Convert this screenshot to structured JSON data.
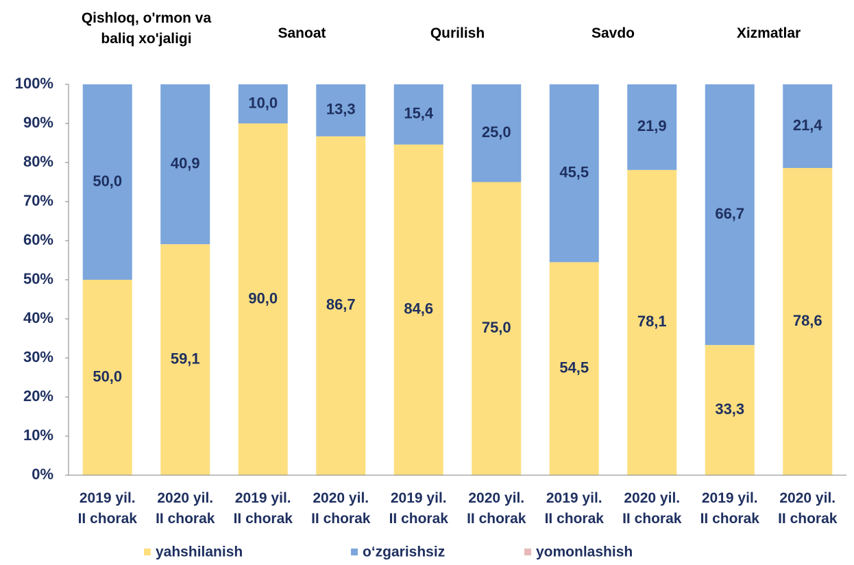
{
  "chart_data": {
    "type": "stacked_bar",
    "groups": [
      {
        "title": [
          "Qishloq, o'rmon va",
          "baliq xo'jaligi"
        ]
      },
      {
        "title": [
          "Sanoat"
        ]
      },
      {
        "title": [
          "Qurilish"
        ]
      },
      {
        "title": [
          "Savdo"
        ]
      },
      {
        "title": [
          "Xizmatlar"
        ]
      }
    ],
    "categories": [
      [
        "2019 yil.",
        "II chorak"
      ],
      [
        "2020 yil.",
        "II chorak"
      ],
      [
        "2019 yil.",
        "II chorak"
      ],
      [
        "2020 yil.",
        "II chorak"
      ],
      [
        "2019 yil.",
        "II chorak"
      ],
      [
        "2020 yil.",
        "II chorak"
      ],
      [
        "2019 yil.",
        "II chorak"
      ],
      [
        "2020 yil.",
        "II chorak"
      ],
      [
        "2019 yil.",
        "II chorak"
      ],
      [
        "2020 yil.",
        "II chorak"
      ]
    ],
    "series": [
      {
        "name": "yahshilanish",
        "color": "#fddf7f",
        "values": [
          50.0,
          59.1,
          90.0,
          86.7,
          84.6,
          75.0,
          54.5,
          78.1,
          33.3,
          78.6
        ],
        "value_labels": [
          "50,0",
          "59,1",
          "90,0",
          "86,7",
          "84,6",
          "75,0",
          "54,5",
          "78,1",
          "33,3",
          "78,6"
        ]
      },
      {
        "name": "o‘zgarishsiz",
        "color": "#7ca6dc",
        "values": [
          50.0,
          40.9,
          10.0,
          13.3,
          15.4,
          25.0,
          45.5,
          21.9,
          66.7,
          21.4
        ],
        "value_labels": [
          "50,0",
          "40,9",
          "10,0",
          "13,3",
          "15,4",
          "25,0",
          "45,5",
          "21,9",
          "66,7",
          "21,4"
        ]
      },
      {
        "name": "yomonlashish",
        "color": "#e7b9b9",
        "values": [
          0,
          0,
          0,
          0,
          0,
          0,
          0,
          0,
          0,
          0
        ]
      }
    ],
    "ylim": [
      0,
      100
    ],
    "yticks": [
      {
        "value": 0,
        "label": "0%"
      },
      {
        "value": 10,
        "label": "10%"
      },
      {
        "value": 20,
        "label": "20%"
      },
      {
        "value": 30,
        "label": "30%"
      },
      {
        "value": 40,
        "label": "40%"
      },
      {
        "value": 50,
        "label": "50%"
      },
      {
        "value": 60,
        "label": "60%"
      },
      {
        "value": 70,
        "label": "70%"
      },
      {
        "value": 80,
        "label": "80%"
      },
      {
        "value": 90,
        "label": "90%"
      },
      {
        "value": 100,
        "label": "100%"
      }
    ],
    "grid": false,
    "legend": "bottom"
  }
}
